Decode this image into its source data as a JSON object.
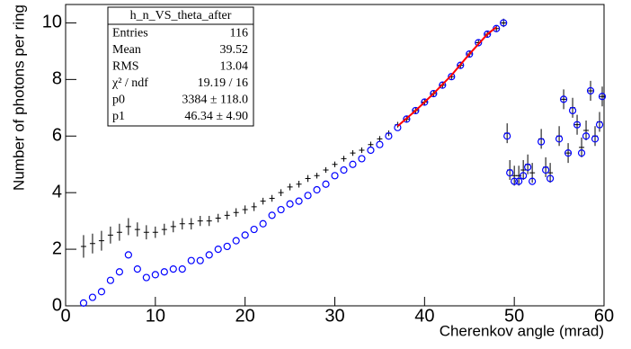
{
  "chart_data": {
    "type": "scatter",
    "x_label": "Cherenkov angle (mrad)",
    "y_label": "Number of photons per ring",
    "xlim": [
      0,
      60
    ],
    "xticks": [
      0,
      10,
      20,
      30,
      40,
      50,
      60
    ],
    "ylim": [
      0,
      10.65
    ],
    "yticks": [
      0,
      2,
      4,
      6,
      8,
      10
    ],
    "x": [
      2,
      3,
      4,
      5,
      6,
      7,
      8,
      9,
      10,
      11,
      12,
      13,
      14,
      15,
      16,
      17,
      18,
      19,
      20,
      21,
      22,
      23,
      24,
      25,
      26,
      27,
      28,
      29,
      30,
      31,
      32,
      33,
      34,
      35,
      36,
      37,
      38,
      39,
      40,
      41,
      42,
      43,
      44,
      45,
      46,
      47,
      48,
      48.8,
      49.2,
      49.5,
      50,
      50.5,
      51,
      51.5,
      52,
      53,
      53.5,
      54,
      55,
      55.5,
      56,
      56.5,
      57,
      57.5,
      58,
      58.5,
      59,
      59.5,
      59.8
    ],
    "series": [
      {
        "style": "cross",
        "color": "#000000",
        "values": [
          2.1,
          2.2,
          2.3,
          2.5,
          2.6,
          2.8,
          2.7,
          2.6,
          2.6,
          2.7,
          2.8,
          2.9,
          2.9,
          3.0,
          3.0,
          3.1,
          3.2,
          3.3,
          3.4,
          3.5,
          3.7,
          3.8,
          4.0,
          4.2,
          4.3,
          4.5,
          4.6,
          4.8,
          5.0,
          5.2,
          5.4,
          5.5,
          5.7,
          5.9,
          6.1,
          6.4,
          6.6,
          6.9,
          7.2,
          7.5,
          7.8,
          8.1,
          8.5,
          8.9,
          9.3,
          9.6,
          9.8,
          10.0,
          6.1,
          4.8,
          4.6,
          4.6,
          4.8,
          5.0,
          4.7,
          5.9,
          4.9,
          4.7,
          6.0,
          7.3,
          5.4,
          7.0,
          6.4,
          5.6,
          6.2,
          7.6,
          6.0,
          6.5,
          7.4
        ],
        "errors": [
          0.4,
          0.35,
          0.35,
          0.3,
          0.3,
          0.3,
          0.25,
          0.25,
          0.2,
          0.2,
          0.2,
          0.2,
          0.2,
          0.18,
          0.18,
          0.15,
          0.15,
          0.15,
          0.15,
          0.15,
          0.12,
          0.12,
          0.12,
          0.12,
          0.12,
          0.12,
          0.1,
          0.1,
          0.1,
          0.1,
          0.1,
          0.1,
          0.1,
          0.1,
          0.1,
          0.1,
          0.1,
          0.1,
          0.1,
          0.1,
          0.1,
          0.1,
          0.1,
          0.1,
          0.1,
          0.1,
          0.1,
          0.15,
          0.35,
          0.35,
          0.35,
          0.35,
          0.35,
          0.35,
          0.35,
          0.35,
          0.35,
          0.35,
          0.35,
          0.35,
          0.35,
          0.35,
          0.35,
          0.35,
          0.35,
          0.35,
          0.35,
          0.35,
          0.35
        ]
      },
      {
        "style": "circle",
        "color": "#0000ff",
        "values": [
          0.1,
          0.3,
          0.5,
          0.9,
          1.2,
          1.8,
          1.3,
          1.0,
          1.1,
          1.2,
          1.3,
          1.3,
          1.6,
          1.6,
          1.8,
          2.0,
          2.1,
          2.3,
          2.5,
          2.7,
          2.9,
          3.2,
          3.4,
          3.6,
          3.7,
          3.9,
          4.1,
          4.3,
          4.6,
          4.8,
          5.0,
          5.2,
          5.5,
          5.7,
          6.0,
          6.3,
          6.6,
          6.9,
          7.2,
          7.5,
          7.8,
          8.1,
          8.5,
          8.9,
          9.3,
          9.6,
          9.8,
          10.0,
          6.0,
          4.7,
          4.4,
          4.4,
          4.6,
          4.9,
          4.4,
          5.8,
          4.8,
          4.5,
          5.9,
          7.3,
          5.4,
          6.9,
          6.4,
          5.4,
          6.0,
          7.6,
          5.9,
          6.4,
          7.4
        ]
      }
    ],
    "fit": {
      "color": "#ff0000",
      "x": [
        37,
        39,
        41,
        43,
        45,
        47,
        48
      ],
      "values": [
        6.35,
        6.9,
        7.5,
        8.15,
        8.9,
        9.6,
        9.85
      ]
    },
    "stats": {
      "title": "h_n_VS_theta_after",
      "rows": [
        [
          "Entries",
          "116"
        ],
        [
          "Mean",
          "39.52"
        ],
        [
          "RMS",
          "13.04"
        ],
        [
          "χ² / ndf",
          "19.19 / 16"
        ],
        [
          "p0",
          "3384 ± 118.0"
        ],
        [
          "p1",
          "46.34 ± 4.90"
        ]
      ]
    }
  }
}
